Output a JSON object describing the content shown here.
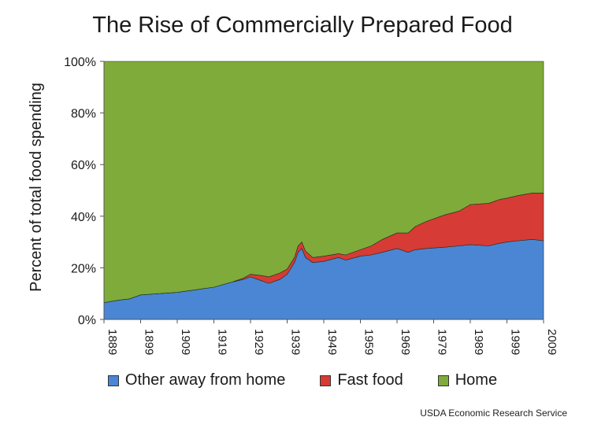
{
  "chart_data": {
    "type": "area",
    "stacked": true,
    "title": "The Rise of Commercially Prepared Food",
    "ylabel": "Percent of total food spending",
    "xlabel": "",
    "xlim": [
      1889,
      2009
    ],
    "ylim": [
      0,
      100
    ],
    "x_ticks": [
      "1889",
      "1899",
      "1909",
      "1919",
      "1929",
      "1939",
      "1949",
      "1959",
      "1969",
      "1979",
      "1989",
      "1999",
      "2009"
    ],
    "y_ticks": [
      "0%",
      "20%",
      "40%",
      "60%",
      "80%",
      "100%"
    ],
    "legend_position": "bottom",
    "x": [
      1889,
      1893,
      1896,
      1899,
      1904,
      1909,
      1914,
      1919,
      1924,
      1927,
      1929,
      1932,
      1934,
      1937,
      1939,
      1941,
      1942,
      1943,
      1944,
      1946,
      1949,
      1953,
      1955,
      1959,
      1962,
      1965,
      1969,
      1972,
      1974,
      1977,
      1982,
      1986,
      1989,
      1994,
      1997,
      1999,
      2002,
      2006,
      2009
    ],
    "series": [
      {
        "name": "Other away from home",
        "color": "#4a86d4",
        "values": [
          6.5,
          7.5,
          8,
          9.5,
          10,
          10.5,
          11.5,
          12.5,
          14.5,
          15.5,
          16.5,
          15,
          14,
          15.5,
          17.5,
          22,
          26,
          27.5,
          24,
          22,
          22.5,
          24,
          23,
          24.5,
          25,
          26,
          27.5,
          26,
          27,
          27.5,
          28,
          28.5,
          29,
          28.5,
          29.5,
          30,
          30.5,
          31,
          30.5
        ]
      },
      {
        "name": "Fast food",
        "color": "#d63b35",
        "values": [
          0,
          0,
          0,
          0,
          0,
          0,
          0,
          0,
          0,
          0.5,
          1,
          2,
          2.5,
          2.5,
          2,
          2,
          2.5,
          2.5,
          2.5,
          2,
          2,
          1.5,
          2,
          2.5,
          3.5,
          5,
          6,
          7.5,
          9,
          10.5,
          12.5,
          13.5,
          15.5,
          16.5,
          17,
          17,
          17.5,
          18,
          18.5
        ]
      },
      {
        "name": "Home",
        "color": "#7fab3a",
        "values": [
          93.5,
          92.5,
          92,
          90.5,
          90,
          89.5,
          88.5,
          87.5,
          85.5,
          84,
          82.5,
          83,
          83.5,
          82,
          80.5,
          76,
          71.5,
          70,
          73.5,
          76,
          75.5,
          74.5,
          75,
          73,
          71.5,
          69,
          66.5,
          66.5,
          64,
          62,
          59.5,
          58,
          55.5,
          55,
          53.5,
          53,
          52,
          51,
          51
        ]
      }
    ]
  },
  "source_note": "USDA Economic Research Service"
}
